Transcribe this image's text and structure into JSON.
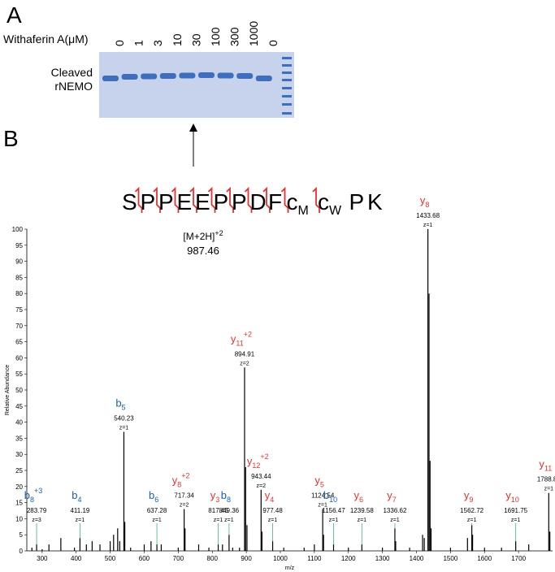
{
  "panel_a": {
    "label": "A",
    "treatment_label": "Withaferin A(μM)",
    "concentrations": [
      "0",
      "1",
      "3",
      "10",
      "30",
      "100",
      "300",
      "1000",
      "0"
    ],
    "band_label": [
      "Cleaved",
      "rNEMO"
    ]
  },
  "panel_b": {
    "label": "B",
    "residues": [
      {
        "text": "S"
      },
      {
        "text": "P"
      },
      {
        "text": "P"
      },
      {
        "text": "E"
      },
      {
        "text": "E"
      },
      {
        "text": "P"
      },
      {
        "text": "P"
      },
      {
        "text": "D"
      },
      {
        "text": "F"
      },
      {
        "text": "c",
        "sub": "M"
      },
      {
        "text": "c",
        "sub": "W"
      },
      {
        "text": "P"
      },
      {
        "text": "K"
      }
    ],
    "precursor": {
      "ion": "[M+2H]",
      "charge": "+2",
      "mz": "987.46"
    }
  },
  "chart_data": {
    "type": "stick",
    "xlabel": "m/z",
    "ylabel": "Relative Abundance",
    "color": "#000000",
    "xlim": [
      255,
      1800
    ],
    "xticks": [
      300,
      400,
      500,
      600,
      700,
      800,
      900,
      1000,
      1100,
      1200,
      1300,
      1400,
      1500,
      1600,
      1700
    ],
    "ylim": [
      0,
      100
    ],
    "yticks": [
      0,
      5,
      10,
      15,
      20,
      25,
      30,
      35,
      40,
      45,
      50,
      55,
      60,
      65,
      70,
      75,
      80,
      85,
      90,
      95,
      100
    ],
    "x": [
      270,
      283.79,
      300,
      320,
      355,
      395,
      411.19,
      430,
      447,
      470,
      500,
      510,
      522,
      528,
      540.23,
      543,
      560,
      600,
      620,
      637.28,
      650,
      700,
      717.34,
      720,
      760,
      790,
      817.45,
      830,
      849.36,
      860,
      880,
      894.91,
      898,
      902,
      943.44,
      946,
      977.48,
      1010,
      1070,
      1100,
      1124.54,
      1127,
      1156.47,
      1200,
      1239.58,
      1300,
      1336.62,
      1339,
      1380,
      1418,
      1423,
      1433.68,
      1437,
      1440,
      1443,
      1500,
      1550,
      1562.72,
      1565,
      1600,
      1650,
      1691.75,
      1730,
      1788.82,
      1792
    ],
    "values": [
      1,
      2,
      0.5,
      2,
      4,
      1,
      4,
      2,
      3,
      2,
      3,
      5,
      7,
      3,
      37,
      9,
      1,
      2,
      3,
      2,
      2,
      1,
      13,
      7,
      2,
      1,
      2,
      2,
      5,
      1,
      1,
      57,
      26,
      8,
      19,
      6,
      3,
      1,
      1,
      2,
      13,
      5,
      2,
      1,
      2,
      1,
      7,
      3,
      1,
      5,
      4,
      100,
      80,
      28,
      7,
      1,
      4,
      8,
      5,
      1,
      1,
      3,
      2,
      18,
      6
    ],
    "ions": [
      null,
      {
        "ion": "b",
        "sub": "8",
        "charge": "+3",
        "z": "z=3",
        "color": "#1c5ea8"
      },
      null,
      null,
      null,
      null,
      {
        "ion": "b",
        "sub": "4",
        "z": "z=1",
        "color": "#1c5ea8"
      },
      null,
      null,
      null,
      null,
      null,
      null,
      null,
      {
        "ion": "b",
        "sub": "5",
        "z": "z=1",
        "color": "#1c5ea8"
      },
      null,
      null,
      null,
      null,
      {
        "ion": "b",
        "sub": "6",
        "z": "z=1",
        "color": "#1c5ea8"
      },
      null,
      null,
      {
        "ion": "y",
        "sub": "8",
        "charge": "+2",
        "z": "z=2",
        "color": "#e8312f"
      },
      null,
      null,
      null,
      {
        "ion": "y",
        "sub": "3",
        "z": "z=1",
        "color": "#e8312f"
      },
      null,
      {
        "ion": "b",
        "sub": "8",
        "z": "z=1",
        "color": "#1c5ea8"
      },
      null,
      null,
      {
        "ion": "y",
        "sub": "11",
        "charge": "+2",
        "z": "z=2",
        "color": "#e8312f"
      },
      null,
      null,
      {
        "ion": "y",
        "sub": "12",
        "charge": "+2",
        "z": "z=2",
        "color": "#e8312f"
      },
      null,
      {
        "ion": "y",
        "sub": "4",
        "z": "z=1",
        "color": "#e8312f"
      },
      null,
      null,
      null,
      {
        "ion": "y",
        "sub": "5",
        "z": "z=1",
        "color": "#e8312f"
      },
      null,
      {
        "ion": "b",
        "sub": "10",
        "z": "z=1",
        "color": "#1c5ea8"
      },
      null,
      {
        "ion": "y",
        "sub": "6",
        "z": "z=1",
        "color": "#e8312f"
      },
      null,
      {
        "ion": "y",
        "sub": "7",
        "z": "z=1",
        "color": "#e8312f"
      },
      null,
      null,
      null,
      null,
      {
        "ion": "y",
        "sub": "8",
        "z": "z=1",
        "color": "#e8312f"
      },
      null,
      null,
      null,
      null,
      null,
      {
        "ion": "y",
        "sub": "9",
        "z": "z=1",
        "color": "#e8312f"
      },
      null,
      null,
      null,
      {
        "ion": "y",
        "sub": "10",
        "z": "z=1",
        "color": "#e8312f"
      },
      null,
      {
        "ion": "y",
        "sub": "11",
        "z": "z=1",
        "color": "#e8312f"
      },
      null
    ]
  }
}
